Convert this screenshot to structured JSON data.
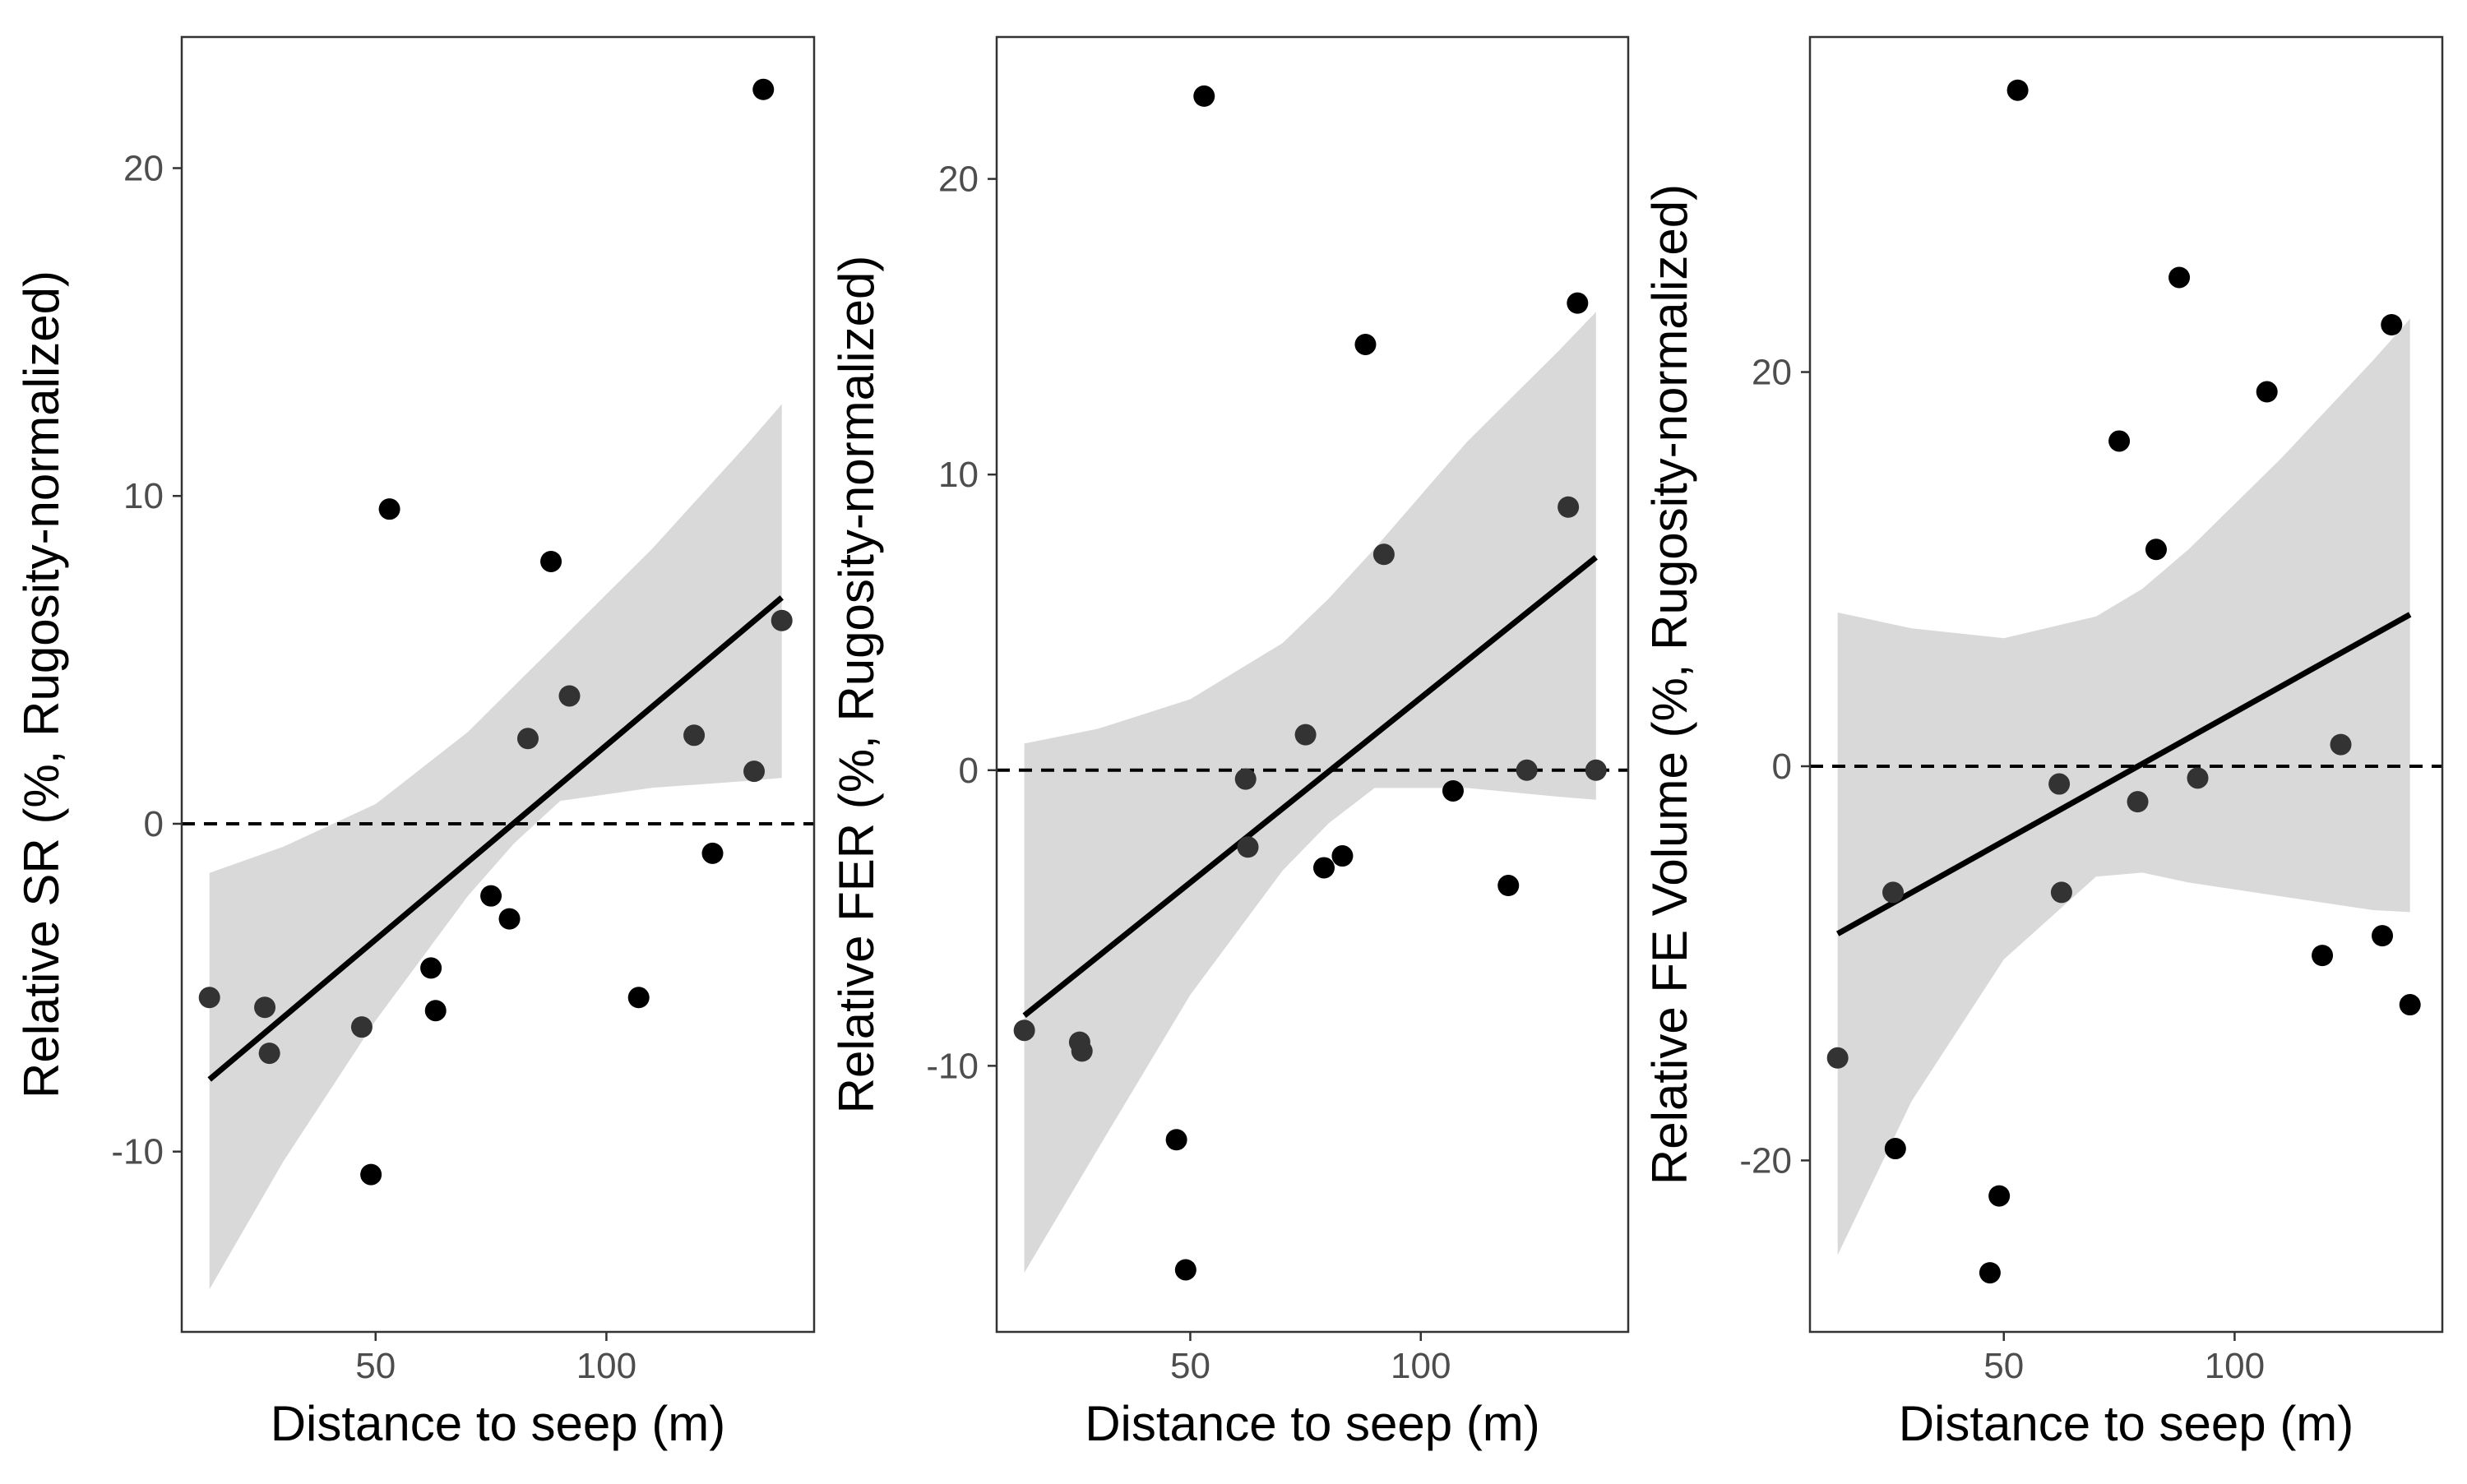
{
  "chart_data": [
    {
      "type": "scatter",
      "xlabel": "Distance to seep (m)",
      "ylabel": "Relative SR (%, Rugosity-normalized)",
      "xlim": [
        8,
        145
      ],
      "ylim": [
        -15.5,
        24
      ],
      "x_ticks": [
        50,
        100
      ],
      "x_tick_labels": [
        "50",
        "100"
      ],
      "y_ticks": [
        -10,
        0,
        10,
        20
      ],
      "y_tick_labels": [
        "-10",
        "0",
        "10",
        "20"
      ],
      "reference_line_y": 0,
      "grid": false,
      "points": [
        {
          "x": 14,
          "y": -5.3
        },
        {
          "x": 26,
          "y": -5.6
        },
        {
          "x": 27,
          "y": -7.0
        },
        {
          "x": 47,
          "y": -6.2
        },
        {
          "x": 49,
          "y": -10.7
        },
        {
          "x": 53,
          "y": 9.6
        },
        {
          "x": 62,
          "y": -4.4
        },
        {
          "x": 63,
          "y": -5.7
        },
        {
          "x": 75,
          "y": -2.2
        },
        {
          "x": 79,
          "y": -2.9
        },
        {
          "x": 83,
          "y": 2.6
        },
        {
          "x": 88,
          "y": 8.0
        },
        {
          "x": 92,
          "y": 3.9
        },
        {
          "x": 107,
          "y": -5.3
        },
        {
          "x": 119,
          "y": 2.7
        },
        {
          "x": 123,
          "y": -0.9
        },
        {
          "x": 132,
          "y": 1.6
        },
        {
          "x": 134,
          "y": 22.4
        },
        {
          "x": 138,
          "y": 6.2
        }
      ],
      "fit_line": {
        "x": [
          14,
          138
        ],
        "y": [
          -7.8,
          6.9
        ]
      },
      "confidence_band": {
        "x": [
          14,
          30,
          50,
          70,
          80,
          90,
          110,
          130,
          138
        ],
        "upper": [
          -1.5,
          -0.7,
          0.6,
          2.8,
          4.2,
          5.6,
          8.4,
          11.5,
          12.8
        ],
        "lower": [
          -14.2,
          -10.3,
          -6.0,
          -2.2,
          -0.6,
          0.7,
          1.1,
          1.3,
          1.4
        ]
      }
    },
    {
      "type": "scatter",
      "xlabel": "Distance to seep (m)",
      "ylabel": "Relative FER (%, Rugosity-normalized)",
      "xlim": [
        8,
        145
      ],
      "ylim": [
        -19,
        24.8
      ],
      "x_ticks": [
        50,
        100
      ],
      "x_tick_labels": [
        "50",
        "100"
      ],
      "y_ticks": [
        -10,
        0,
        10,
        20
      ],
      "y_tick_labels": [
        "-10",
        "0",
        "10",
        "20"
      ],
      "reference_line_y": 0,
      "grid": false,
      "points": [
        {
          "x": 14,
          "y": -8.8
        },
        {
          "x": 26,
          "y": -9.2
        },
        {
          "x": 26.5,
          "y": -9.5
        },
        {
          "x": 47,
          "y": -12.5
        },
        {
          "x": 49,
          "y": -16.9
        },
        {
          "x": 53,
          "y": 22.8
        },
        {
          "x": 62,
          "y": -0.3
        },
        {
          "x": 62.5,
          "y": -2.6
        },
        {
          "x": 75,
          "y": 1.2
        },
        {
          "x": 79,
          "y": -3.3
        },
        {
          "x": 83,
          "y": -2.9
        },
        {
          "x": 88,
          "y": 14.4
        },
        {
          "x": 92,
          "y": 7.3
        },
        {
          "x": 107,
          "y": -0.7
        },
        {
          "x": 119,
          "y": -3.9
        },
        {
          "x": 123,
          "y": 0.0
        },
        {
          "x": 132,
          "y": 8.9
        },
        {
          "x": 134,
          "y": 15.8
        },
        {
          "x": 138,
          "y": 0.0
        }
      ],
      "fit_line": {
        "x": [
          14,
          138
        ],
        "y": [
          -8.3,
          7.2
        ]
      },
      "confidence_band": {
        "x": [
          14,
          30,
          50,
          70,
          80,
          90,
          110,
          130,
          138
        ],
        "upper": [
          0.9,
          1.4,
          2.4,
          4.3,
          5.8,
          7.5,
          11.1,
          14.2,
          15.5
        ],
        "lower": [
          -17.0,
          -12.8,
          -7.6,
          -3.4,
          -1.8,
          -0.6,
          -0.6,
          -0.9,
          -1.0
        ]
      }
    },
    {
      "type": "scatter",
      "xlabel": "Distance to seep (m)",
      "ylabel": "Relative FE Volume (%, Rugosity-normalized)",
      "xlim": [
        8,
        145
      ],
      "ylim": [
        -28.7,
        37
      ],
      "x_ticks": [
        50,
        100
      ],
      "x_tick_labels": [
        "50",
        "100"
      ],
      "y_ticks": [
        -20,
        0,
        20
      ],
      "y_tick_labels": [
        "-20",
        "0",
        "20"
      ],
      "reference_line_y": 0,
      "grid": false,
      "points": [
        {
          "x": 14,
          "y": -14.8
        },
        {
          "x": 26,
          "y": -6.4
        },
        {
          "x": 26.5,
          "y": -19.4
        },
        {
          "x": 47,
          "y": -25.7
        },
        {
          "x": 49,
          "y": -21.8
        },
        {
          "x": 53,
          "y": 34.3
        },
        {
          "x": 62,
          "y": -0.9
        },
        {
          "x": 62.5,
          "y": -6.4
        },
        {
          "x": 75,
          "y": 16.5
        },
        {
          "x": 79,
          "y": -1.8
        },
        {
          "x": 83,
          "y": 11.0
        },
        {
          "x": 88,
          "y": 24.8
        },
        {
          "x": 92,
          "y": -0.6
        },
        {
          "x": 107,
          "y": 19.0
        },
        {
          "x": 119,
          "y": -9.6
        },
        {
          "x": 123,
          "y": 1.1
        },
        {
          "x": 132,
          "y": -8.6
        },
        {
          "x": 134,
          "y": 22.4
        },
        {
          "x": 138,
          "y": -12.1
        }
      ],
      "fit_line": {
        "x": [
          14,
          138
        ],
        "y": [
          -8.5,
          7.7
        ]
      },
      "confidence_band": {
        "x": [
          14,
          30,
          50,
          70,
          80,
          90,
          110,
          130,
          138
        ],
        "upper": [
          7.8,
          7.0,
          6.5,
          7.6,
          9.0,
          11.0,
          15.6,
          20.6,
          22.7
        ],
        "lower": [
          -24.8,
          -17.0,
          -9.8,
          -5.6,
          -5.4,
          -5.9,
          -6.6,
          -7.3,
          -7.4
        ]
      }
    }
  ]
}
